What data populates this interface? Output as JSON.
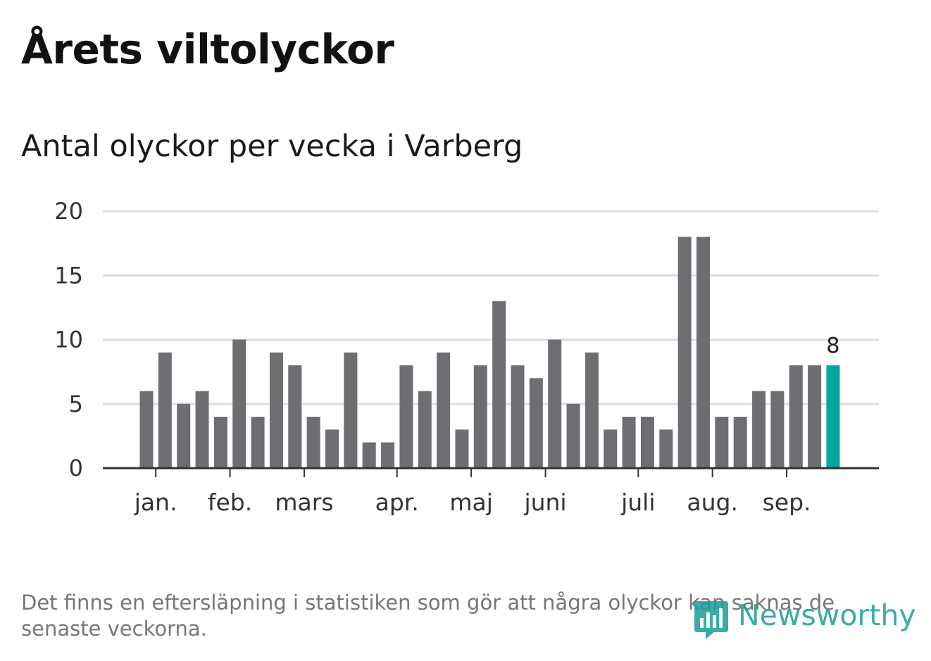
{
  "title": "Årets viltolyckor",
  "subtitle": "Antal olyckor per vecka i Varberg",
  "footnote": "Det finns en eftersläpning i statistiken som gör att några olyckor kan saknas de senaste veckorna.",
  "brand": {
    "name": "Newsworthy",
    "icon": "bar-chart-logo-icon",
    "color": "#1a9e96"
  },
  "colors": {
    "bar": "#6e6d72",
    "highlight": "#00a69c",
    "grid": "#dddddd",
    "axis": "#333333"
  },
  "chart_data": {
    "type": "bar",
    "values": [
      6,
      9,
      5,
      6,
      4,
      10,
      4,
      9,
      8,
      4,
      3,
      9,
      2,
      2,
      8,
      6,
      9,
      3,
      8,
      13,
      8,
      7,
      10,
      5,
      9,
      3,
      4,
      4,
      3,
      18,
      18,
      4,
      4,
      6,
      6,
      8,
      8,
      8
    ],
    "ylim": [
      0,
      20
    ],
    "yticks": [
      0,
      5,
      10,
      15,
      20
    ],
    "grid": true,
    "month_labels": [
      {
        "label": "jan.",
        "bar_index": 0.5
      },
      {
        "label": "feb.",
        "bar_index": 4.5
      },
      {
        "label": "mars",
        "bar_index": 8.5
      },
      {
        "label": "apr.",
        "bar_index": 13.5
      },
      {
        "label": "maj",
        "bar_index": 17.5
      },
      {
        "label": "juni",
        "bar_index": 21.5
      },
      {
        "label": "juli",
        "bar_index": 26.5
      },
      {
        "label": "aug.",
        "bar_index": 30.5
      },
      {
        "label": "sep.",
        "bar_index": 34.5
      }
    ],
    "highlight_index": 37,
    "highlight_label": "8"
  }
}
